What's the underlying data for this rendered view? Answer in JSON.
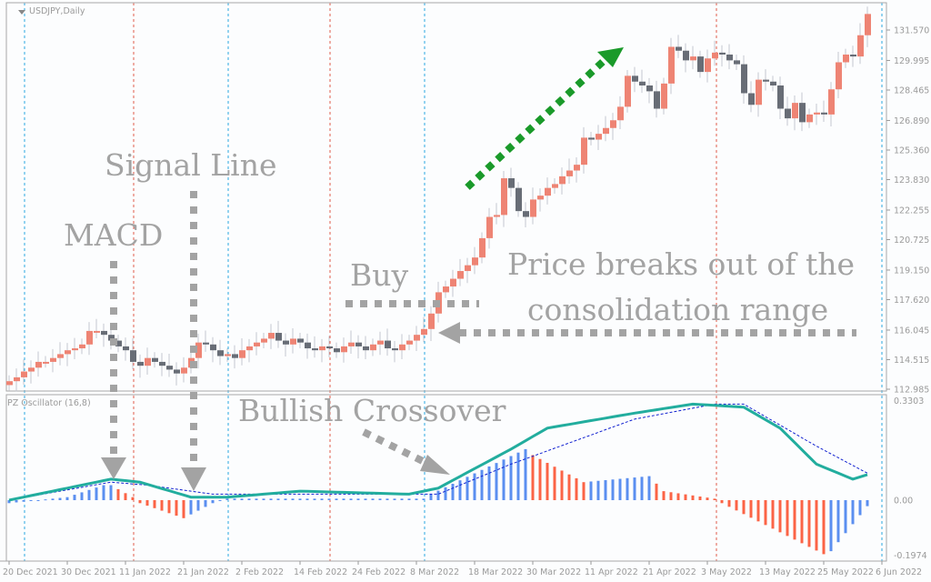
{
  "window": {
    "symbol_title": "USDJPY,Daily"
  },
  "oscillator": {
    "title": "PZ Oscillator (16,8)"
  },
  "colors": {
    "bull": "#ee8474",
    "bear": "#686d76",
    "macd": "#22ad9e",
    "signal": "#1020d0",
    "hist_up": "#5b8ff0",
    "hist_down": "#fb6446",
    "annotation": "#a3a3a3",
    "trend_arrow": "#1a9a2a"
  },
  "annotations": {
    "macd": "MACD",
    "signal_line": "Signal Line",
    "buy": "Buy",
    "breakout_1": "Price breaks out of the",
    "breakout_2": "consolidation range",
    "bullish_crossover": "Bullish Crossover"
  },
  "chart_data": [
    {
      "type": "candlestick",
      "title": "USDJPY,Daily",
      "ylim": [
        112.985,
        131.57
      ],
      "y_ticks": [
        "131.570",
        "129.995",
        "128.465",
        "126.890",
        "125.360",
        "123.830",
        "122.255",
        "120.725",
        "119.150",
        "117.620",
        "116.045",
        "114.515",
        "112.985"
      ],
      "y_tick_values": [
        131.57,
        129.995,
        128.465,
        126.89,
        125.36,
        123.83,
        122.255,
        120.725,
        119.15,
        117.62,
        116.045,
        114.515,
        112.985
      ],
      "x_ticks": [
        {
          "label": "20 Dec 2021",
          "index": 0
        },
        {
          "label": "30 Dec 2021",
          "index": 8
        },
        {
          "label": "11 Jan 2022",
          "index": 16
        },
        {
          "label": "21 Jan 2022",
          "index": 24
        },
        {
          "label": "2 Feb 2022",
          "index": 32
        },
        {
          "label": "14 Feb 2022",
          "index": 40
        },
        {
          "label": "24 Feb 2022",
          "index": 48
        },
        {
          "label": "8 Mar 2022",
          "index": 56
        },
        {
          "label": "18 Mar 2022",
          "index": 64
        },
        {
          "label": "30 Mar 2022",
          "index": 72
        },
        {
          "label": "11 Apr 2022",
          "index": 80
        },
        {
          "label": "21 Apr 2022",
          "index": 88
        },
        {
          "label": "3 May 2022",
          "index": 96
        },
        {
          "label": "13 May 2022",
          "index": 104
        },
        {
          "label": "25 May 2022",
          "index": 112
        },
        {
          "label": "6 Jun 2022",
          "index": 120
        }
      ],
      "open_first": 113.2,
      "closes": [
        113.4,
        113.6,
        113.9,
        114.1,
        114.4,
        114.4,
        114.6,
        114.8,
        115.0,
        115.1,
        115.3,
        116.0,
        116.0,
        115.8,
        115.5,
        115.2,
        115.0,
        114.4,
        114.2,
        114.6,
        114.4,
        114.2,
        114.0,
        113.8,
        114.1,
        114.6,
        115.4,
        115.3,
        115.0,
        114.7,
        114.8,
        114.6,
        115.0,
        115.2,
        115.4,
        115.6,
        115.9,
        115.5,
        115.3,
        115.6,
        115.4,
        115.1,
        115.0,
        115.2,
        115.1,
        114.9,
        115.2,
        115.4,
        115.2,
        115.0,
        115.3,
        115.5,
        115.1,
        115.0,
        115.3,
        115.5,
        115.8,
        116.1,
        116.9,
        118.0,
        118.3,
        118.7,
        119.1,
        119.4,
        119.8,
        120.8,
        121.9,
        122.0,
        123.9,
        123.4,
        122.2,
        121.9,
        122.8,
        123.0,
        123.4,
        123.6,
        124.0,
        124.3,
        124.6,
        126.0,
        125.9,
        126.2,
        126.5,
        126.9,
        127.6,
        129.2,
        128.9,
        128.7,
        128.4,
        127.5,
        128.8,
        130.7,
        130.5,
        130.0,
        130.2,
        129.4,
        130.1,
        130.4,
        130.3,
        130.0,
        129.8,
        128.3,
        127.7,
        129.0,
        128.9,
        128.7,
        127.5,
        127.0,
        127.8,
        126.8,
        127.2,
        127.3,
        127.2,
        128.5,
        129.9,
        130.3,
        130.2,
        131.3,
        132.4
      ]
    },
    {
      "type": "line",
      "title": "PZ Oscillator (16,8)",
      "ylim": [
        -0.1974,
        0.3303
      ],
      "y_ticks": [
        "0.3303",
        "0.00",
        "-0.1974"
      ],
      "y_tick_values": [
        0.3303,
        0,
        -0.1974
      ],
      "series": [
        {
          "name": "macd",
          "points": [
            [
              0,
              0
            ],
            [
              14,
              0.07
            ],
            [
              18,
              0.06
            ],
            [
              25,
              0.01
            ],
            [
              30,
              0.01
            ],
            [
              40,
              0.03
            ],
            [
              55,
              0.02
            ],
            [
              59,
              0.04
            ],
            [
              69,
              0.17
            ],
            [
              74,
              0.24
            ],
            [
              86,
              0.29
            ],
            [
              94,
              0.32
            ],
            [
              101,
              0.31
            ],
            [
              106,
              0.24
            ],
            [
              111,
              0.12
            ],
            [
              116,
              0.07
            ],
            [
              120,
              0.1
            ]
          ]
        },
        {
          "name": "signal",
          "points": [
            [
              0,
              0
            ],
            [
              14,
              0.06
            ],
            [
              19,
              0.05
            ],
            [
              28,
              0.02
            ],
            [
              59,
              0.02
            ],
            [
              69,
              0.12
            ],
            [
              86,
              0.27
            ],
            [
              97,
              0.32
            ],
            [
              101,
              0.32
            ],
            [
              111,
              0.18
            ],
            [
              118,
              0.09
            ],
            [
              120,
              0.1
            ]
          ]
        },
        {
          "name": "histogram",
          "points": [
            [
              0,
              -0.01
            ],
            [
              8,
              0.01
            ],
            [
              13,
              0.05
            ],
            [
              14,
              0.05
            ],
            [
              17,
              0.01
            ],
            [
              18,
              -0.01
            ],
            [
              24,
              -0.06
            ],
            [
              28,
              -0.01
            ],
            [
              30,
              0.005
            ],
            [
              57,
              0.005
            ],
            [
              58,
              0.02
            ],
            [
              71,
              0.17
            ],
            [
              72,
              0.15
            ],
            [
              79,
              0.06
            ],
            [
              88,
              0.08
            ],
            [
              90,
              0.03
            ],
            [
              97,
              0.005
            ],
            [
              98,
              -0.01
            ],
            [
              112,
              -0.18
            ],
            [
              113,
              -0.17
            ],
            [
              118,
              -0.02
            ],
            [
              119,
              0.0
            ],
            [
              120,
              0.03
            ]
          ]
        }
      ]
    }
  ]
}
